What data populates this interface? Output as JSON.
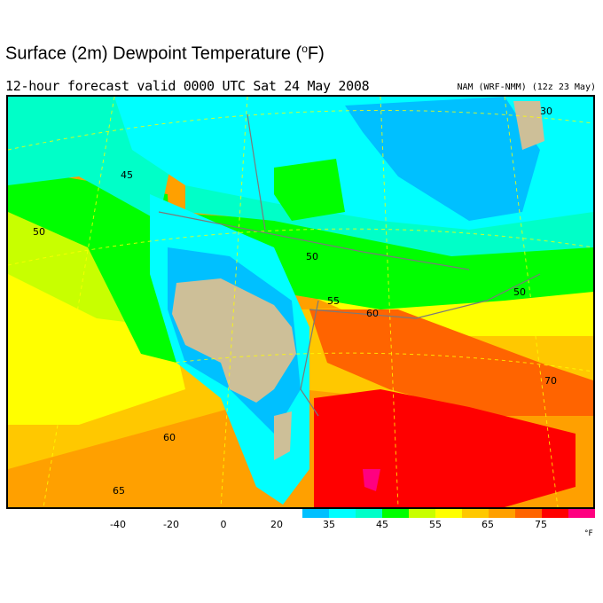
{
  "title": "Surface (2m) Dewpoint Temperature (",
  "title_unit": "o",
  "title_end": "F)",
  "subtitle": "12-hour forecast valid 0000 UTC Sat 24 May 2008",
  "model": "NAM (WRF-NMM) (12z 23 May)",
  "colorbar": {
    "colors": [
      "#00c0ff",
      "#00ffff",
      "#00ffc8",
      "#00ff00",
      "#c8ff00",
      "#ffff00",
      "#ffc800",
      "#ffa000",
      "#ff6400",
      "#ff0000",
      "#ff0080"
    ],
    "labels": [
      "-40",
      "-20",
      "0",
      "20",
      "35",
      "45",
      "55",
      "65",
      "75"
    ],
    "unit": "°F"
  },
  "contour_labels": [
    "45",
    "50",
    "60",
    "65",
    "50",
    "55",
    "60",
    "50",
    "70",
    "30"
  ],
  "colors": {
    "terrain_mask": "#cdbf98",
    "borders": "#7a7a7a",
    "grid": "#ffff00"
  }
}
